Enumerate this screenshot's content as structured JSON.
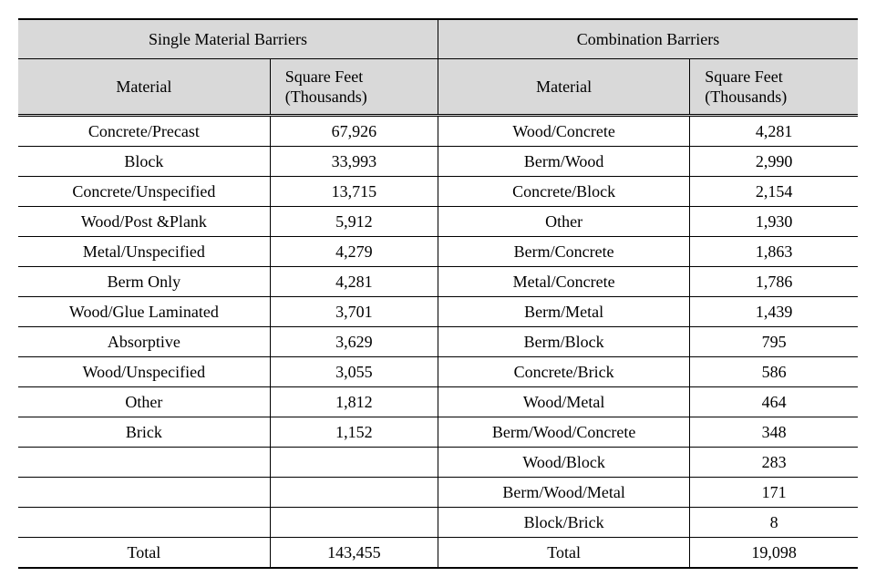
{
  "table": {
    "background_color": "#ffffff",
    "header_bg": "#d9d9d9",
    "border_color": "#000000",
    "font_family": "Times New Roman / Batang serif",
    "cell_fontsize": 18,
    "columns": {
      "left_group": "Single Material Barriers",
      "right_group": "Combination Barriers",
      "material": "Material",
      "sqft": "Square Feet\n(Thousands)"
    },
    "single": [
      {
        "material": "Concrete/Precast",
        "sqft": "67,926"
      },
      {
        "material": "Block",
        "sqft": "33,993"
      },
      {
        "material": "Concrete/Unspecified",
        "sqft": "13,715"
      },
      {
        "material": "Wood/Post &Plank",
        "sqft": "5,912"
      },
      {
        "material": "Metal/Unspecified",
        "sqft": "4,279"
      },
      {
        "material": "Berm Only",
        "sqft": "4,281"
      },
      {
        "material": "Wood/Glue Laminated",
        "sqft": "3,701"
      },
      {
        "material": "Absorptive",
        "sqft": "3,629"
      },
      {
        "material": "Wood/Unspecified",
        "sqft": "3,055"
      },
      {
        "material": "Other",
        "sqft": "1,812"
      },
      {
        "material": "Brick",
        "sqft": "1,152"
      },
      {
        "material": "",
        "sqft": ""
      },
      {
        "material": "",
        "sqft": ""
      },
      {
        "material": "",
        "sqft": ""
      }
    ],
    "combo": [
      {
        "material": "Wood/Concrete",
        "sqft": "4,281"
      },
      {
        "material": "Berm/Wood",
        "sqft": "2,990"
      },
      {
        "material": "Concrete/Block",
        "sqft": "2,154"
      },
      {
        "material": "Other",
        "sqft": "1,930"
      },
      {
        "material": "Berm/Concrete",
        "sqft": "1,863"
      },
      {
        "material": "Metal/Concrete",
        "sqft": "1,786"
      },
      {
        "material": "Berm/Metal",
        "sqft": "1,439"
      },
      {
        "material": "Berm/Block",
        "sqft": "795"
      },
      {
        "material": "Concrete/Brick",
        "sqft": "586"
      },
      {
        "material": "Wood/Metal",
        "sqft": "464"
      },
      {
        "material": "Berm/Wood/Concrete",
        "sqft": "348"
      },
      {
        "material": "Wood/Block",
        "sqft": "283"
      },
      {
        "material": "Berm/Wood/Metal",
        "sqft": "171"
      },
      {
        "material": "Block/Brick",
        "sqft": "8"
      }
    ],
    "totals": {
      "label": "Total",
      "single_total": "143,455",
      "combo_total": "19,098"
    },
    "col_widths_pct": [
      30,
      20,
      30,
      20
    ]
  }
}
